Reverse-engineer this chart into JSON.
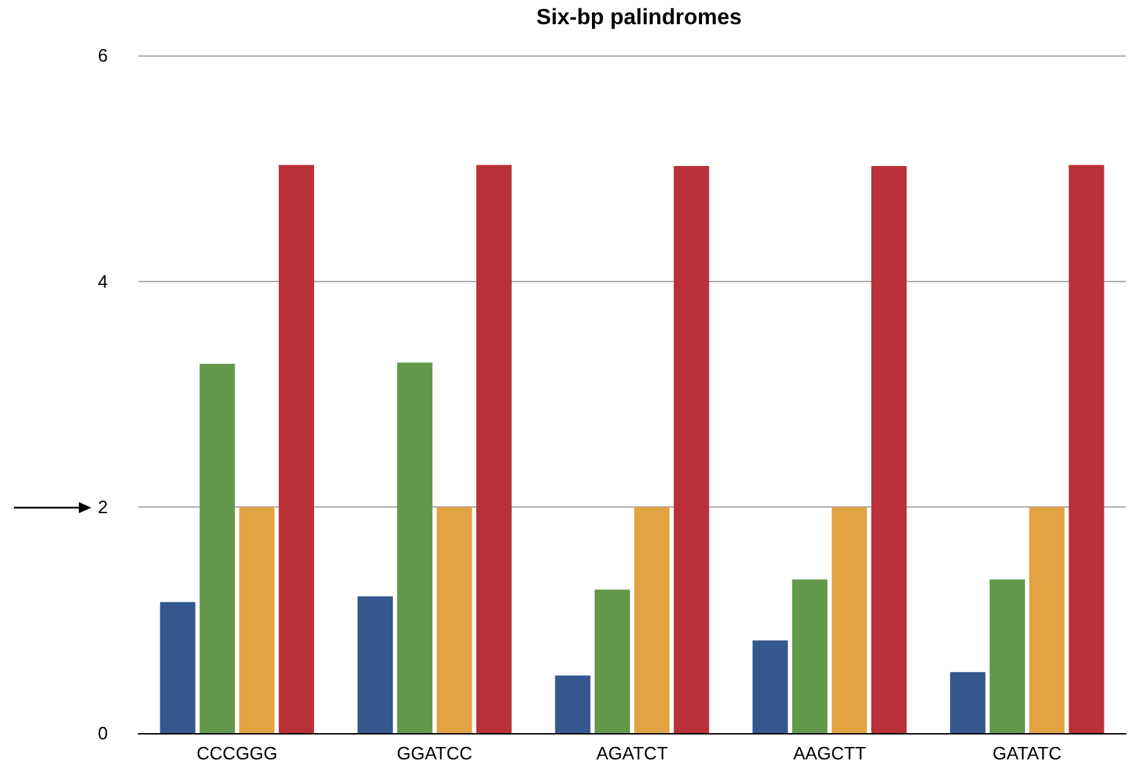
{
  "chart_data": {
    "type": "bar",
    "title": "Six-bp palindromes",
    "categories": [
      "CCCGGG",
      "GGATCC",
      "AGATCT",
      "AAGCTT",
      "GATATC"
    ],
    "series": [
      {
        "color": "#34578e",
        "values": [
          1.16,
          1.21,
          0.51,
          0.82,
          0.54
        ]
      },
      {
        "color": "#62984a",
        "values": [
          3.27,
          3.28,
          1.27,
          1.36,
          1.36
        ]
      },
      {
        "color": "#e3a343",
        "values": [
          2.0,
          2.0,
          2.0,
          2.0,
          2.0
        ]
      },
      {
        "color": "#b93036",
        "values": [
          5.03,
          5.03,
          5.02,
          5.02,
          5.03
        ]
      }
    ],
    "ylim": [
      0,
      6
    ],
    "yticks": [
      0,
      2,
      4,
      6
    ],
    "grid": "y"
  }
}
